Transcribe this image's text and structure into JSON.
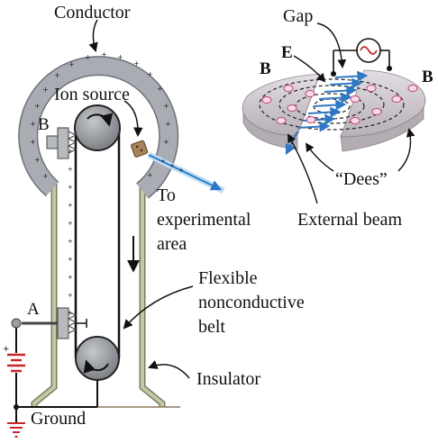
{
  "labels": {
    "conductor": "Conductor",
    "ion_source": "Ion source",
    "brush_b": "B",
    "brush_a": "A",
    "to_line1": "To",
    "to_line2": "experimental",
    "to_line3": "area",
    "belt_line1": "Flexible",
    "belt_line2": "nonconductive",
    "belt_line3": "belt",
    "insulator": "Insulator",
    "ground": "Ground",
    "gap": "Gap",
    "e_field": "E",
    "b_left": "B",
    "b_right": "B",
    "dees": "“Dees”",
    "external_beam": "External beam"
  },
  "colors": {
    "conductor_fill": "#a9adb3",
    "conductor_edge": "#6e7278",
    "pulley": "#8d9196",
    "insulator": "#b9bc9c",
    "insulator_edge": "#7b7e5e",
    "ion_source": "#a8825a",
    "beam": "#2f78c4",
    "beam_light": "#bfe0f4",
    "battery": "#c8272a",
    "dee_fill": "#ccc6cc",
    "dee_top": "#ddd7dd",
    "particle": "#c2417a"
  },
  "icons": [
    "sine-wave-icon",
    "battery-icon",
    "ground-icon",
    "pulley-rotation-icon"
  ]
}
